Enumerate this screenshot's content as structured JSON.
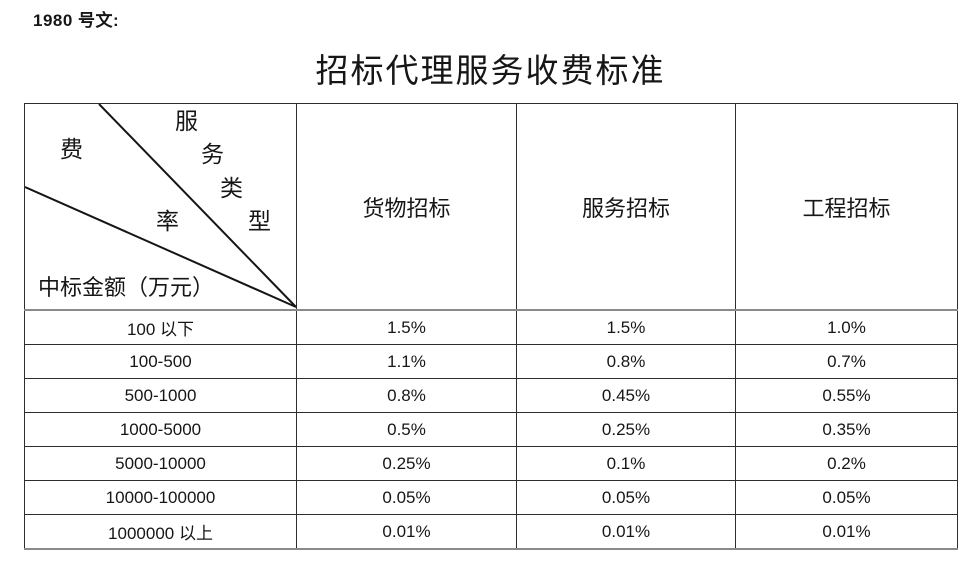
{
  "page": {
    "doc_number": "1980 号文:",
    "title": "招标代理服务收费标准"
  },
  "colors": {
    "text": "#161616",
    "table_border": "#2e2e2e",
    "heavy_rule": "#8a8a8a",
    "background": "#ffffff"
  },
  "table": {
    "corner": {
      "service_type_chars": [
        "服",
        "务",
        "类",
        "型"
      ],
      "fee_rate_chars": [
        "费",
        "率"
      ],
      "amount_label": "中标金额（万元）"
    },
    "columns": [
      "货物招标",
      "服务招标",
      "工程招标"
    ],
    "rows": [
      {
        "range": "100 以下",
        "values": [
          "1.5%",
          "1.5%",
          "1.0%"
        ]
      },
      {
        "range": "100-500",
        "values": [
          "1.1%",
          "0.8%",
          "0.7%"
        ]
      },
      {
        "range": "500-1000",
        "values": [
          "0.8%",
          "0.45%",
          "0.55%"
        ]
      },
      {
        "range": "1000-5000",
        "values": [
          "0.5%",
          "0.25%",
          "0.35%"
        ]
      },
      {
        "range": "5000-10000",
        "values": [
          "0.25%",
          "0.1%",
          "0.2%"
        ]
      },
      {
        "range": "10000-100000",
        "values": [
          "0.05%",
          "0.05%",
          "0.05%"
        ]
      },
      {
        "range": "1000000 以上",
        "values": [
          "0.01%",
          "0.01%",
          "0.01%"
        ]
      }
    ]
  }
}
